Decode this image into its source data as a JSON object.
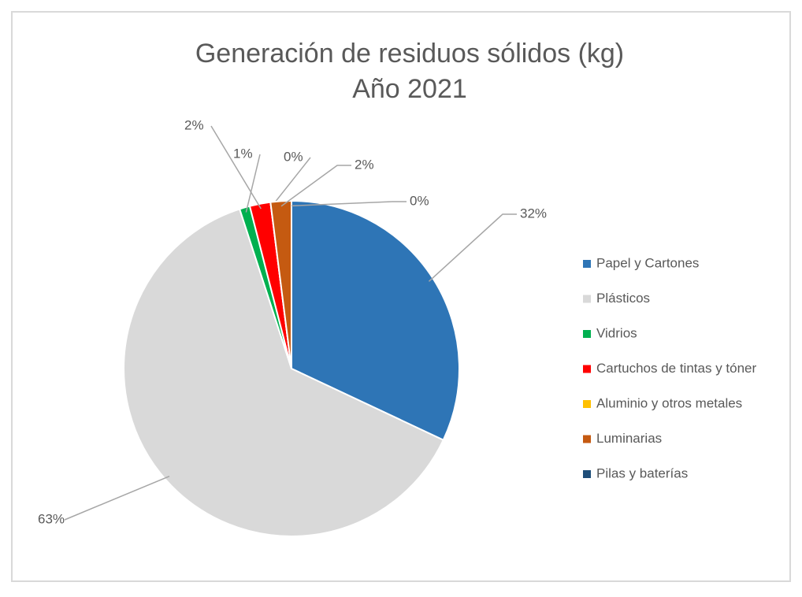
{
  "chart_data": {
    "type": "pie",
    "title": "Generación de residuos sólidos (kg)",
    "subtitle": "Año 2021",
    "categories": [
      "Papel y Cartones",
      "Plásticos",
      "Vidrios",
      "Cartuchos de tintas y tóner",
      "Aluminio y otros metales",
      "Luminarias",
      "Pilas y baterías"
    ],
    "values": [
      32,
      63,
      1,
      2,
      0,
      2,
      0
    ],
    "value_labels": [
      "32%",
      "63%",
      "1%",
      "2%",
      "0%",
      "2%",
      "0%"
    ],
    "colors": [
      "#2e75b6",
      "#d9d9d9",
      "#00b050",
      "#ff0000",
      "#ffc000",
      "#c55a11",
      "#1f4e79"
    ],
    "legend": "right"
  }
}
